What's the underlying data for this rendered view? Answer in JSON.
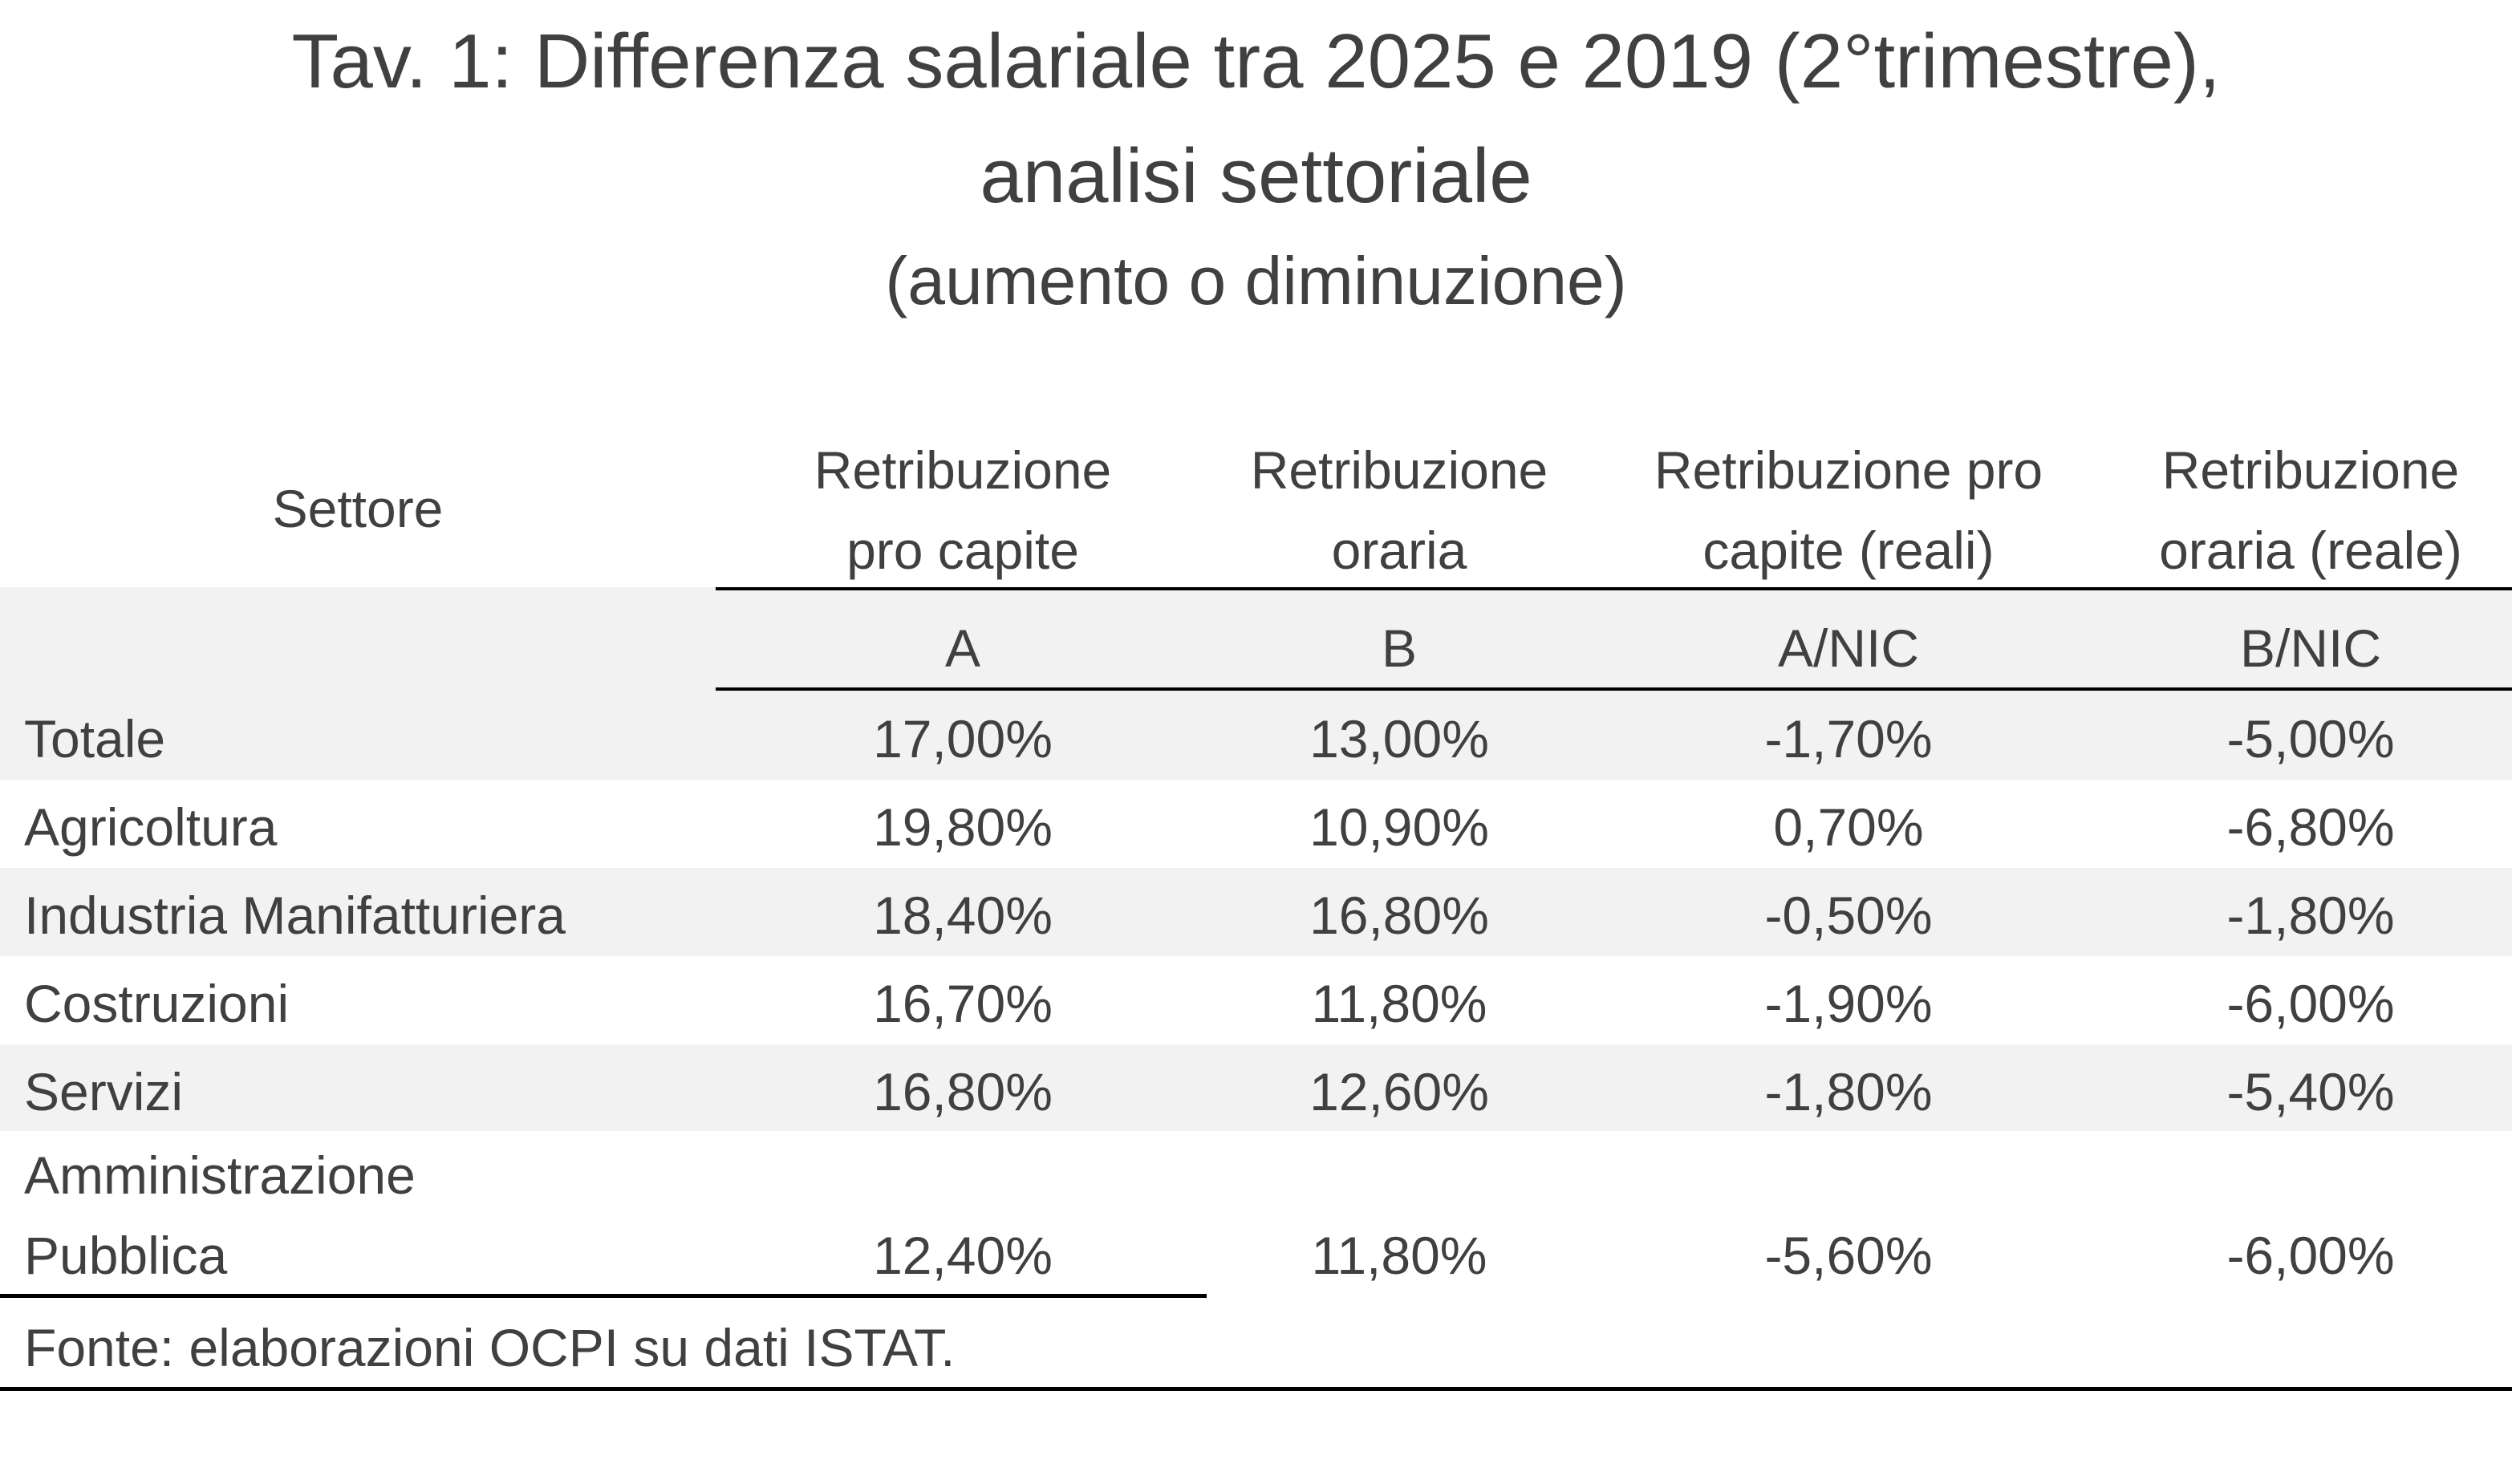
{
  "title": {
    "line1": "Tav. 1: Differenza salariale tra 2025 e 2019 (2°trimestre),",
    "line2": "analisi settoriale",
    "subtitle": "(aumento o diminuzione)"
  },
  "table": {
    "sector_header": "Settore",
    "columns": [
      {
        "line1": "Retribuzione",
        "line2": "pro capite",
        "code": "A"
      },
      {
        "line1": "Retribuzione",
        "line2": "oraria",
        "code": "B"
      },
      {
        "line1": "Retribuzione pro",
        "line2": "capite (reali)",
        "code": "A/NIC"
      },
      {
        "line1": "Retribuzione",
        "line2": "oraria (reale)",
        "code": "B/NIC"
      }
    ],
    "rows": [
      {
        "sector": "Totale",
        "values": [
          "17,00%",
          "13,00%",
          "-1,70%",
          "-5,00%"
        ]
      },
      {
        "sector": "Agricoltura",
        "values": [
          "19,80%",
          "10,90%",
          "0,70%",
          "-6,80%"
        ]
      },
      {
        "sector": "Industria Manifatturiera",
        "values": [
          "18,40%",
          "16,80%",
          "-0,50%",
          "-1,80%"
        ]
      },
      {
        "sector": "Costruzioni",
        "values": [
          "16,70%",
          "11,80%",
          "-1,90%",
          "-6,00%"
        ]
      },
      {
        "sector": "Servizi",
        "values": [
          "16,80%",
          "12,60%",
          "-1,80%",
          "-5,40%"
        ]
      },
      {
        "sector_line1": "Amministrazione",
        "sector_line2": "Pubblica",
        "values": [
          "12,40%",
          "11,80%",
          "-5,60%",
          "-6,00%"
        ]
      }
    ]
  },
  "source": "Fonte: elaborazioni OCPI su dati ISTAT."
}
